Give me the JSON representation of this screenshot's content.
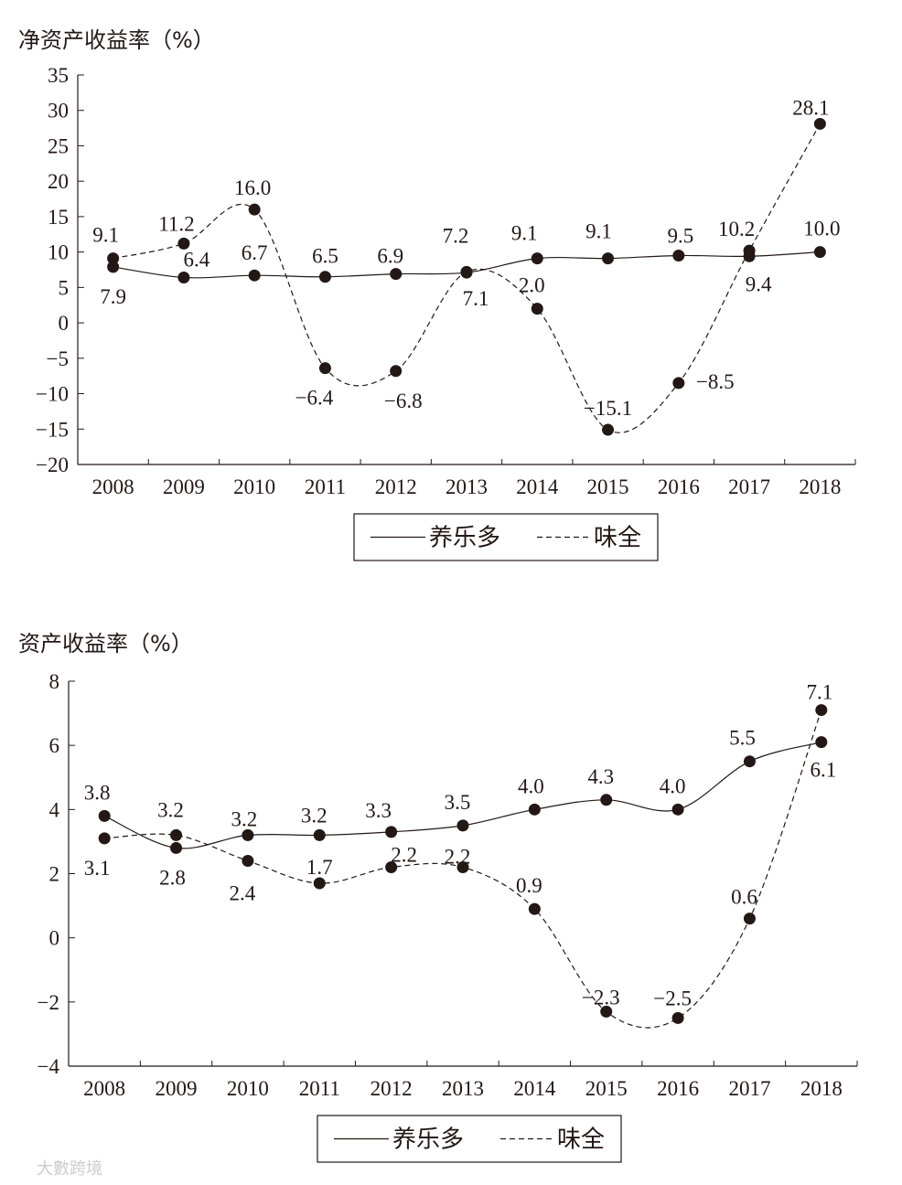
{
  "chart_data": [
    {
      "type": "line",
      "title": "",
      "ylabel": "净资产收益率（%）",
      "xlabel": "",
      "categories": [
        "2008",
        "2009",
        "2010",
        "2011",
        "2012",
        "2013",
        "2014",
        "2015",
        "2016",
        "2017",
        "2018"
      ],
      "ylim": [
        -20,
        35
      ],
      "yticks": [
        -20,
        -15,
        -10,
        -5,
        0,
        5,
        10,
        15,
        20,
        25,
        30,
        35
      ],
      "yticklabels": [
        "−20",
        "−15",
        "−10",
        "−5",
        "0",
        "5",
        "10",
        "15",
        "20",
        "25",
        "30",
        "35"
      ],
      "series": [
        {
          "name": "养乐多",
          "style": "solid",
          "values": [
            7.9,
            6.4,
            6.7,
            6.5,
            6.9,
            7.1,
            9.1,
            9.1,
            9.5,
            9.4,
            10.0
          ],
          "labels": [
            "7.9",
            "6.4",
            "6.7",
            "6.5",
            "6.9",
            "7.1",
            "9.1",
            "9.1",
            "9.5",
            "9.4",
            "10.0"
          ]
        },
        {
          "name": "味全",
          "style": "dashed",
          "values": [
            9.1,
            11.2,
            16.0,
            -6.4,
            -6.8,
            7.2,
            2.0,
            -15.1,
            -8.5,
            10.2,
            28.1
          ],
          "labels": [
            "9.1",
            "11.2",
            "16.0",
            "−6.4",
            "−6.8",
            "7.2",
            "2.0",
            "−15.1",
            "−8.5",
            "10.2",
            "28.1"
          ]
        }
      ],
      "legend": [
        "养乐多",
        "味全"
      ],
      "legend_position": "bottom-center"
    },
    {
      "type": "line",
      "title": "",
      "ylabel": "资产收益率（%）",
      "xlabel": "",
      "categories": [
        "2008",
        "2009",
        "2010",
        "2011",
        "2012",
        "2013",
        "2014",
        "2015",
        "2016",
        "2017",
        "2018"
      ],
      "ylim": [
        -4,
        8
      ],
      "yticks": [
        -4,
        -2,
        0,
        2,
        4,
        6,
        8
      ],
      "yticklabels": [
        "−4",
        "−2",
        "0",
        "2",
        "4",
        "6",
        "8"
      ],
      "series": [
        {
          "name": "养乐多",
          "style": "solid",
          "values": [
            3.8,
            2.8,
            3.2,
            3.2,
            3.3,
            3.5,
            4.0,
            4.3,
            4.0,
            5.5,
            6.1
          ],
          "labels": [
            "3.8",
            "2.8",
            "3.2",
            "3.2",
            "3.3",
            "3.5",
            "4.0",
            "4.3",
            "4.0",
            "5.5",
            "6.1"
          ]
        },
        {
          "name": "味全",
          "style": "dashed",
          "values": [
            3.1,
            3.2,
            2.4,
            1.7,
            2.2,
            2.2,
            0.9,
            -2.3,
            -2.5,
            0.6,
            7.1
          ],
          "labels": [
            "3.1",
            "3.2",
            "2.4",
            "1.7",
            "2.2",
            "2.2",
            "0.9",
            "−2.3",
            "−2.5",
            "0.6",
            "7.1"
          ]
        }
      ],
      "legend": [
        "养乐多",
        "味全"
      ],
      "legend_position": "bottom-center"
    }
  ],
  "watermark": "大數跨境",
  "colors": {
    "ink": "#231815"
  }
}
